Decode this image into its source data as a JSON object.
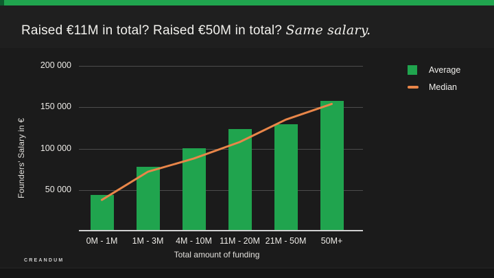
{
  "slide": {
    "title_part1": "Raised €11M in total? Raised €50M in total? ",
    "title_part2": "Same salary.",
    "logo": "CREANDUM"
  },
  "colors": {
    "accent_green": "#20a44e",
    "accent_green_dark_edge": "#0e5d2f",
    "accent_orange": "#e98649",
    "slide_background": "#1b1b1b",
    "gridline": "#4d4d4d",
    "axis_line": "#d2d2d2",
    "text": "#f2f1ed"
  },
  "chart_data": {
    "type": "bar",
    "subtype": "bar+line combo",
    "title": "",
    "categories": [
      "0M - 1M",
      "1M - 3M",
      "4M - 10M",
      "11M - 20M",
      "21M - 50M",
      "50M+"
    ],
    "series": [
      {
        "name": "Average",
        "type": "bar",
        "color": "#20a44e",
        "values": [
          43000,
          77000,
          100000,
          123000,
          129000,
          157000
        ]
      },
      {
        "name": "Median",
        "type": "line",
        "color": "#e98649",
        "values": [
          38000,
          72000,
          88000,
          108000,
          135000,
          154000
        ]
      }
    ],
    "xlabel": "Total amount of funding",
    "ylabel": "Founders' Salary in €",
    "ylim": [
      0,
      200000
    ],
    "y_ticks": [
      {
        "label": "200 000",
        "value": 200000
      },
      {
        "label": "150 000",
        "value": 150000
      },
      {
        "label": "100 000",
        "value": 100000
      },
      {
        "label": "50 000",
        "value": 50000
      }
    ],
    "grid": "horizontal",
    "legend_position": "top-right"
  }
}
